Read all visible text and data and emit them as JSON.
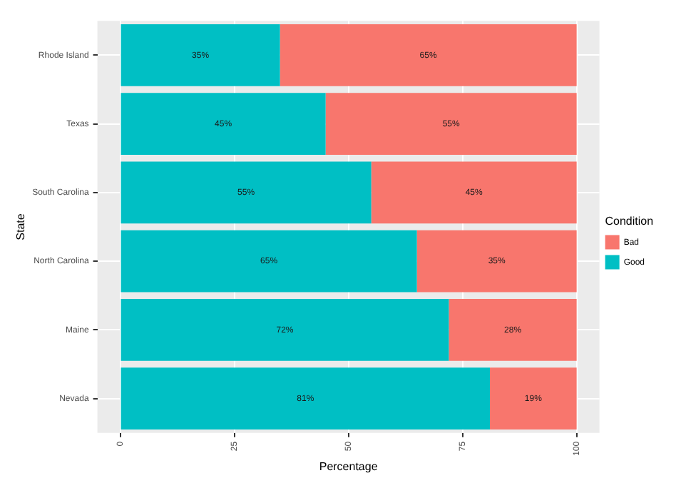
{
  "chart_data": {
    "type": "bar",
    "orientation": "horizontal",
    "stacked": true,
    "xlabel": "Percentage",
    "ylabel": "State",
    "legend_title": "Condition",
    "legend": "right",
    "grid": true,
    "categories": [
      "Rhode Island",
      "Texas",
      "South Carolina",
      "North Carolina",
      "Maine",
      "Nevada"
    ],
    "xlim": [
      -5,
      105
    ],
    "xticks": [
      0,
      25,
      50,
      75,
      100
    ],
    "series": [
      {
        "name": "Good",
        "color": "#00bfc4",
        "values": [
          35,
          45,
          55,
          65,
          72,
          81
        ],
        "value_labels": [
          "35%",
          "45%",
          "55%",
          "65%",
          "72%",
          "81%"
        ]
      },
      {
        "name": "Bad",
        "color": "#f8766d",
        "values": [
          65,
          55,
          45,
          35,
          28,
          19
        ],
        "value_labels": [
          "65%",
          "55%",
          "45%",
          "35%",
          "28%",
          "19%"
        ]
      }
    ]
  }
}
